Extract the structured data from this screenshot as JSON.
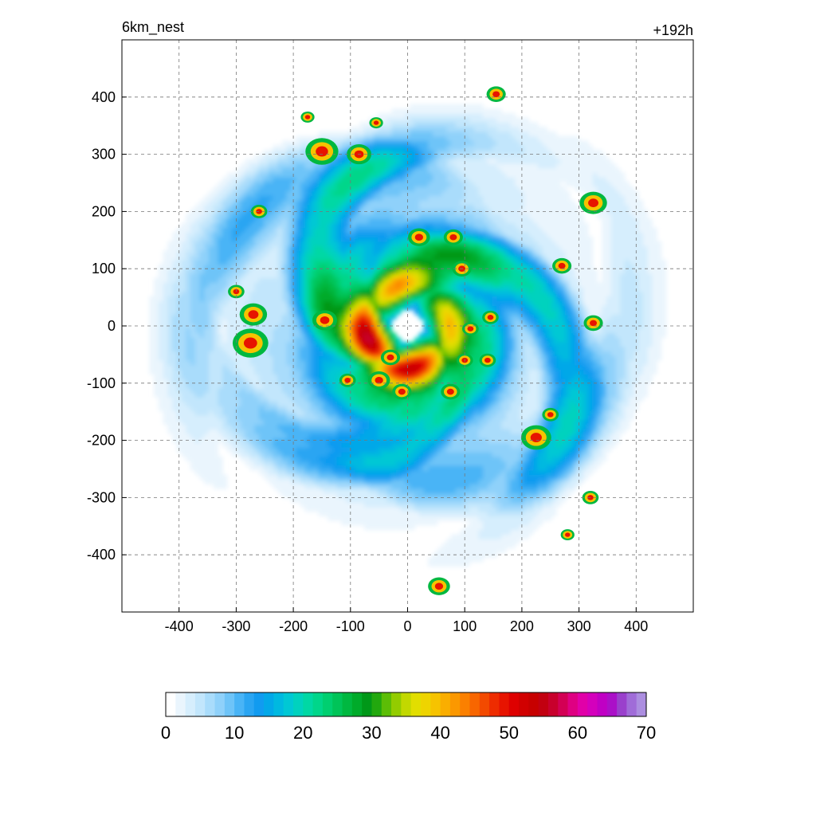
{
  "chart_data": {
    "type": "heatmap",
    "title_left": "6km_nest",
    "title_right": "+192h",
    "xlabel": "",
    "ylabel": "",
    "xlim": [
      -500,
      500
    ],
    "ylim": [
      -500,
      500
    ],
    "x_ticks": [
      "-400",
      "-300",
      "-200",
      "-100",
      "0",
      "100",
      "200",
      "300",
      "400"
    ],
    "x_tick_values": [
      -400,
      -300,
      -200,
      -100,
      0,
      100,
      200,
      300,
      400
    ],
    "y_ticks": [
      "400",
      "300",
      "200",
      "100",
      "0",
      "-100",
      "-200",
      "-300",
      "-400"
    ],
    "y_tick_values": [
      400,
      300,
      200,
      100,
      0,
      -100,
      -200,
      -300,
      -400
    ],
    "grid": true,
    "colorbar": {
      "min": 0,
      "max": 70,
      "labels": [
        "0",
        "10",
        "20",
        "30",
        "40",
        "50",
        "60",
        "70"
      ],
      "label_values": [
        0,
        10,
        20,
        30,
        40,
        50,
        60,
        70
      ],
      "colors": [
        "#ffffff",
        "#eaf5fd",
        "#d6eefd",
        "#c2e6fc",
        "#a9dcfb",
        "#8fd1fa",
        "#6ec4f8",
        "#49b4f6",
        "#2aa5f2",
        "#119bf0",
        "#03a8e8",
        "#00b9e0",
        "#00c8d4",
        "#00d2be",
        "#00d8a4",
        "#00d68a",
        "#00cf70",
        "#00c458",
        "#00b840",
        "#00ab2a",
        "#009818",
        "#22a80e",
        "#5cbd06",
        "#93cc00",
        "#c2d800",
        "#e2de00",
        "#eed400",
        "#f6c300",
        "#faae00",
        "#fb9800",
        "#fb8000",
        "#f86600",
        "#f34a00",
        "#ee2c00",
        "#e71400",
        "#de0000",
        "#d10000",
        "#c70000",
        "#c20010",
        "#c8002c",
        "#d30054",
        "#df0082",
        "#e100a8",
        "#d400bc",
        "#c000c4",
        "#ab10c8",
        "#9a40cc",
        "#a06cd8",
        "#ac8ee0"
      ]
    },
    "field_description_levels": {
      "eye_radius_km": 30,
      "eyewall_peak_km": 70,
      "max_value_approx": 52
    }
  }
}
